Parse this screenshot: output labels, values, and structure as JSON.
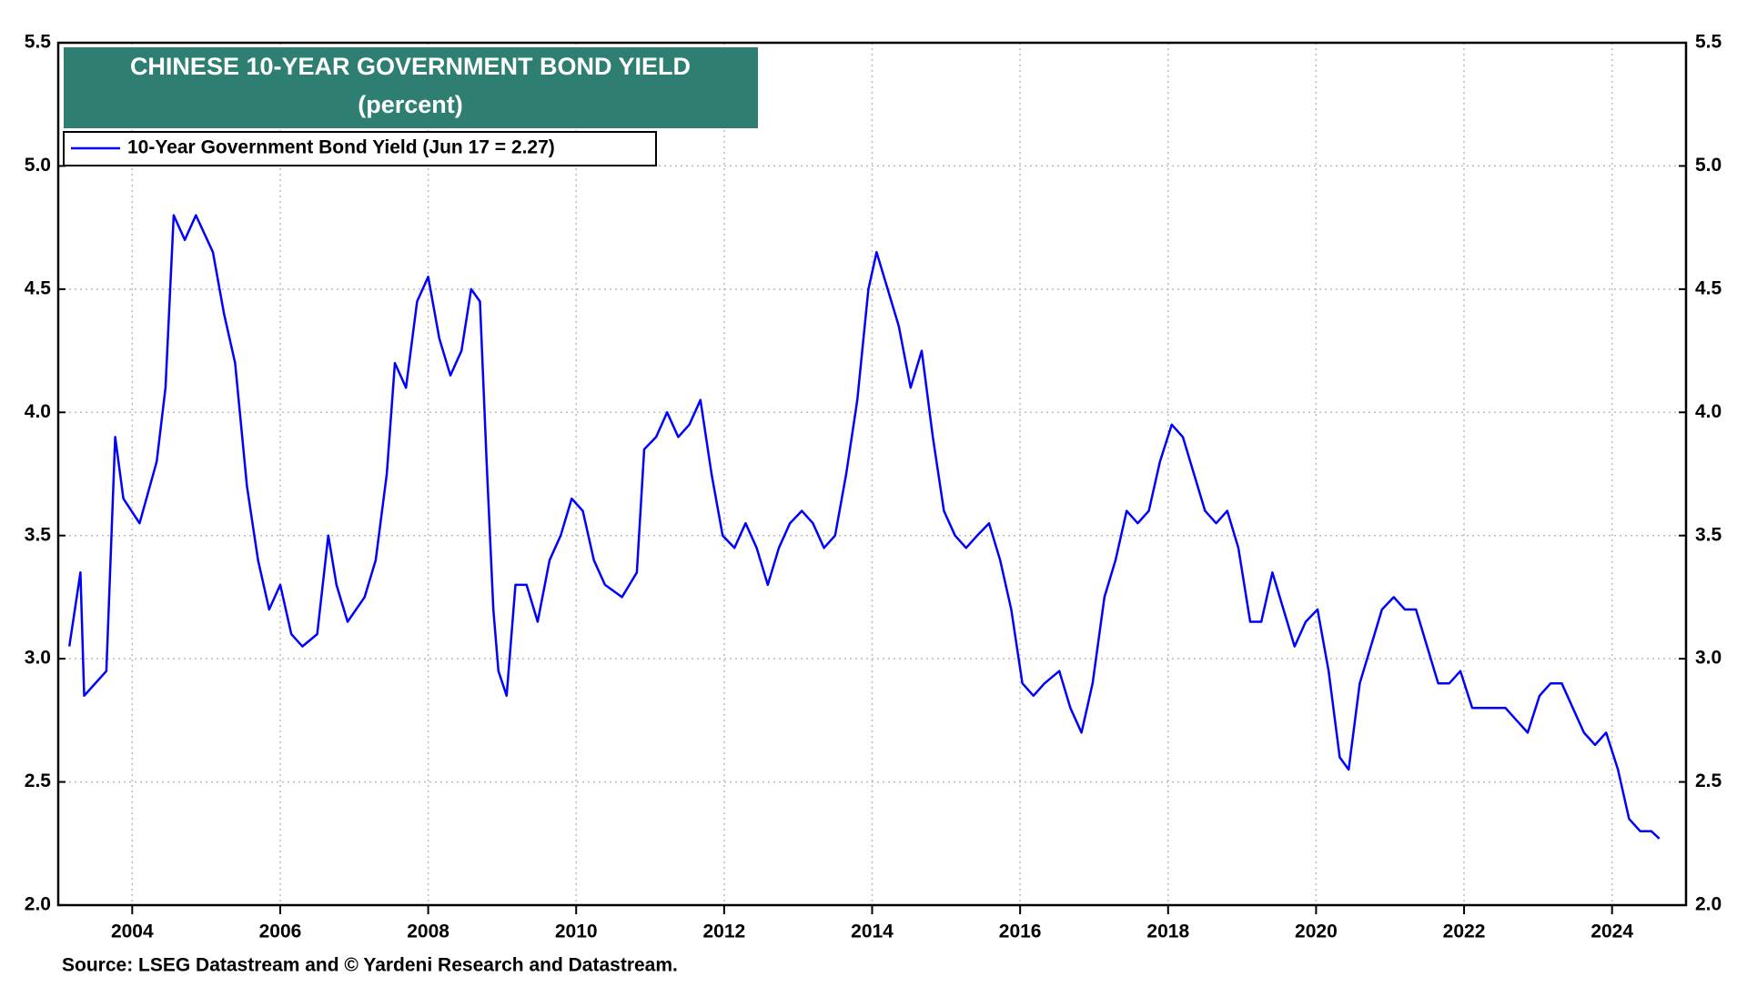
{
  "chart_data": {
    "type": "line",
    "title": "CHINESE 10-YEAR GOVERNMENT BOND YIELD",
    "subtitle": "(percent)",
    "source": "Source: LSEG Datastream and © Yardeni Research and Datastream.",
    "x": [
      2003.15,
      2003.3,
      2003.35,
      2003.65,
      2003.77,
      2003.88,
      2004.1,
      2004.33,
      2004.45,
      2004.56,
      2004.71,
      2004.86,
      2005.09,
      2005.24,
      2005.39,
      2005.55,
      2005.7,
      2005.85,
      2006.0,
      2006.15,
      2006.3,
      2006.5,
      2006.65,
      2006.76,
      2006.91,
      2007.14,
      2007.29,
      2007.44,
      2007.55,
      2007.7,
      2007.85,
      2008.0,
      2008.15,
      2008.3,
      2008.45,
      2008.58,
      2008.7,
      2008.79,
      2008.88,
      2008.95,
      2009.06,
      2009.18,
      2009.33,
      2009.48,
      2009.64,
      2009.79,
      2009.94,
      2010.09,
      2010.24,
      2010.39,
      2010.62,
      2010.82,
      2010.92,
      2011.08,
      2011.23,
      2011.38,
      2011.53,
      2011.68,
      2011.83,
      2011.98,
      2012.14,
      2012.29,
      2012.44,
      2012.59,
      2012.74,
      2012.89,
      2013.05,
      2013.2,
      2013.35,
      2013.5,
      2013.65,
      2013.8,
      2013.95,
      2014.06,
      2014.21,
      2014.36,
      2014.52,
      2014.67,
      2014.82,
      2014.97,
      2015.12,
      2015.27,
      2015.42,
      2015.58,
      2015.73,
      2015.88,
      2016.03,
      2016.18,
      2016.33,
      2016.53,
      2016.68,
      2016.83,
      2016.98,
      2017.14,
      2017.29,
      2017.44,
      2017.59,
      2017.74,
      2017.89,
      2018.05,
      2018.2,
      2018.35,
      2018.5,
      2018.65,
      2018.8,
      2018.95,
      2019.11,
      2019.26,
      2019.41,
      2019.56,
      2019.71,
      2019.86,
      2020.02,
      2020.17,
      2020.32,
      2020.44,
      2020.59,
      2020.74,
      2020.89,
      2021.05,
      2021.2,
      2021.35,
      2021.5,
      2021.65,
      2021.8,
      2021.95,
      2022.11,
      2022.26,
      2022.41,
      2022.56,
      2022.71,
      2022.86,
      2023.02,
      2023.17,
      2023.32,
      2023.47,
      2023.62,
      2023.77,
      2023.92,
      2024.08,
      2024.23,
      2024.38,
      2024.53,
      2024.64
    ],
    "series": [
      {
        "name": "10-Year Government Bond Yield (Jun 17 = 2.27)",
        "color": "#0000ff",
        "values": [
          3.05,
          3.35,
          2.85,
          2.95,
          3.9,
          3.65,
          3.55,
          3.8,
          4.1,
          4.8,
          4.7,
          4.8,
          4.65,
          4.4,
          4.2,
          3.7,
          3.4,
          3.2,
          3.3,
          3.1,
          3.05,
          3.1,
          3.5,
          3.3,
          3.15,
          3.25,
          3.4,
          3.75,
          4.2,
          4.1,
          4.45,
          4.55,
          4.3,
          4.15,
          4.25,
          4.5,
          4.45,
          3.8,
          3.2,
          2.95,
          2.85,
          3.3,
          3.3,
          3.15,
          3.4,
          3.5,
          3.65,
          3.6,
          3.4,
          3.3,
          3.25,
          3.35,
          3.85,
          3.9,
          4.0,
          3.9,
          3.95,
          4.05,
          3.75,
          3.5,
          3.45,
          3.55,
          3.45,
          3.3,
          3.45,
          3.55,
          3.6,
          3.55,
          3.45,
          3.5,
          3.75,
          4.05,
          4.5,
          4.65,
          4.5,
          4.35,
          4.1,
          4.25,
          3.9,
          3.6,
          3.5,
          3.45,
          3.5,
          3.55,
          3.4,
          3.2,
          2.9,
          2.85,
          2.9,
          2.95,
          2.8,
          2.7,
          2.9,
          3.25,
          3.4,
          3.6,
          3.55,
          3.6,
          3.8,
          3.95,
          3.9,
          3.75,
          3.6,
          3.55,
          3.6,
          3.45,
          3.15,
          3.15,
          3.35,
          3.2,
          3.05,
          3.15,
          3.2,
          2.95,
          2.6,
          2.55,
          2.9,
          3.05,
          3.2,
          3.25,
          3.2,
          3.2,
          3.05,
          2.9,
          2.9,
          2.95,
          2.8,
          2.8,
          2.8,
          2.8,
          2.75,
          2.7,
          2.85,
          2.9,
          2.9,
          2.8,
          2.7,
          2.65,
          2.7,
          2.55,
          2.35,
          2.3,
          2.3,
          2.27
        ]
      }
    ],
    "xlim": [
      2003,
      2025
    ],
    "xticks": [
      2004,
      2006,
      2008,
      2010,
      2012,
      2014,
      2016,
      2018,
      2020,
      2022,
      2024
    ],
    "ylim": [
      2,
      5.5
    ],
    "yticks": [
      {
        "value": 2,
        "label": "2.0"
      },
      2.5,
      {
        "value": 3,
        "label": "3.0"
      },
      3.5,
      {
        "value": 4,
        "label": "4.0"
      },
      4.5,
      {
        "value": 5,
        "label": "5.0"
      },
      5.5
    ],
    "grid": true
  }
}
